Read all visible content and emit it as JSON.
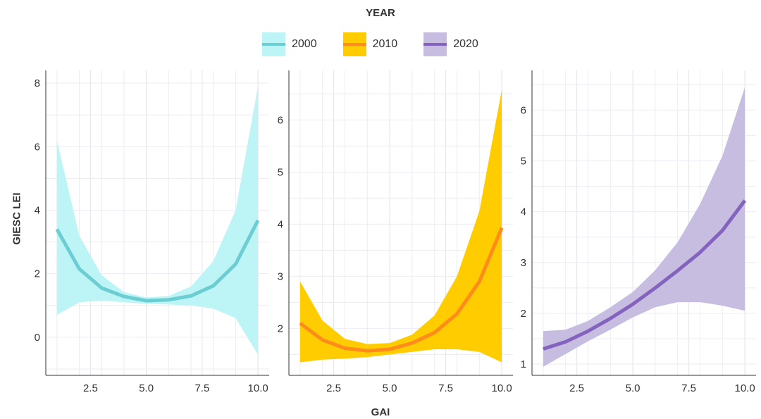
{
  "legend": {
    "title": "YEAR",
    "items": [
      {
        "label": "2000",
        "fill": "#BDF4F6",
        "line": "#6CCDD2"
      },
      {
        "label": "2010",
        "fill": "#FFCC00",
        "line": "#FF8C1A"
      },
      {
        "label": "2020",
        "fill": "#C7BDE0",
        "line": "#8463BF"
      }
    ]
  },
  "chart_data": {
    "type": "line",
    "xlabel": "GAI",
    "ylabel": "GIESC LEI",
    "x": [
      1,
      2,
      3,
      4,
      5,
      6,
      7,
      8,
      9,
      10
    ],
    "grid": true,
    "legend_position": "top",
    "panels": [
      {
        "name": "2000",
        "xlim": [
          0.5,
          10.5
        ],
        "ylim": [
          -1.2,
          8.4
        ],
        "xticks": [
          "2.5",
          "5.0",
          "7.5",
          "10.0"
        ],
        "yticks": [
          "0",
          "2",
          "4",
          "6",
          "8"
        ],
        "series": [
          {
            "name": "2000",
            "values": [
              3.4,
              2.15,
              1.55,
              1.28,
              1.15,
              1.18,
              1.3,
              1.62,
              2.3,
              3.68
            ],
            "lower": [
              0.7,
              1.1,
              1.15,
              1.1,
              1.05,
              1.03,
              1.0,
              0.9,
              0.6,
              -0.55
            ],
            "upper": [
              6.2,
              3.2,
              1.95,
              1.42,
              1.25,
              1.3,
              1.6,
              2.4,
              4.0,
              7.9
            ]
          }
        ]
      },
      {
        "name": "2010",
        "xlim": [
          0.5,
          10.5
        ],
        "ylim": [
          1.1,
          6.95
        ],
        "xticks": [
          "2.5",
          "5.0",
          "7.5",
          "10.0"
        ],
        "yticks": [
          "2",
          "3",
          "4",
          "5",
          "6"
        ],
        "series": [
          {
            "name": "2010",
            "values": [
              2.1,
              1.78,
              1.62,
              1.57,
              1.6,
              1.72,
              1.92,
              2.28,
              2.9,
              3.93
            ],
            "lower": [
              1.35,
              1.4,
              1.42,
              1.45,
              1.5,
              1.55,
              1.6,
              1.6,
              1.55,
              1.35
            ],
            "upper": [
              2.9,
              2.15,
              1.8,
              1.7,
              1.72,
              1.88,
              2.25,
              3.0,
              4.25,
              6.58
            ]
          }
        ]
      },
      {
        "name": "2020",
        "xlim": [
          0.5,
          10.5
        ],
        "ylim": [
          0.78,
          6.78
        ],
        "xticks": [
          "2.5",
          "5.0",
          "7.5",
          "10.0"
        ],
        "yticks": [
          "1",
          "2",
          "3",
          "4",
          "5",
          "6"
        ],
        "series": [
          {
            "name": "2020",
            "values": [
              1.3,
              1.44,
              1.65,
              1.9,
              2.18,
              2.5,
              2.84,
              3.2,
              3.63,
              4.22
            ],
            "lower": [
              0.95,
              1.2,
              1.45,
              1.68,
              1.92,
              2.12,
              2.22,
              2.22,
              2.15,
              2.05
            ],
            "upper": [
              1.65,
              1.68,
              1.85,
              2.12,
              2.42,
              2.85,
              3.4,
              4.15,
              5.1,
              6.45
            ]
          }
        ]
      }
    ]
  }
}
